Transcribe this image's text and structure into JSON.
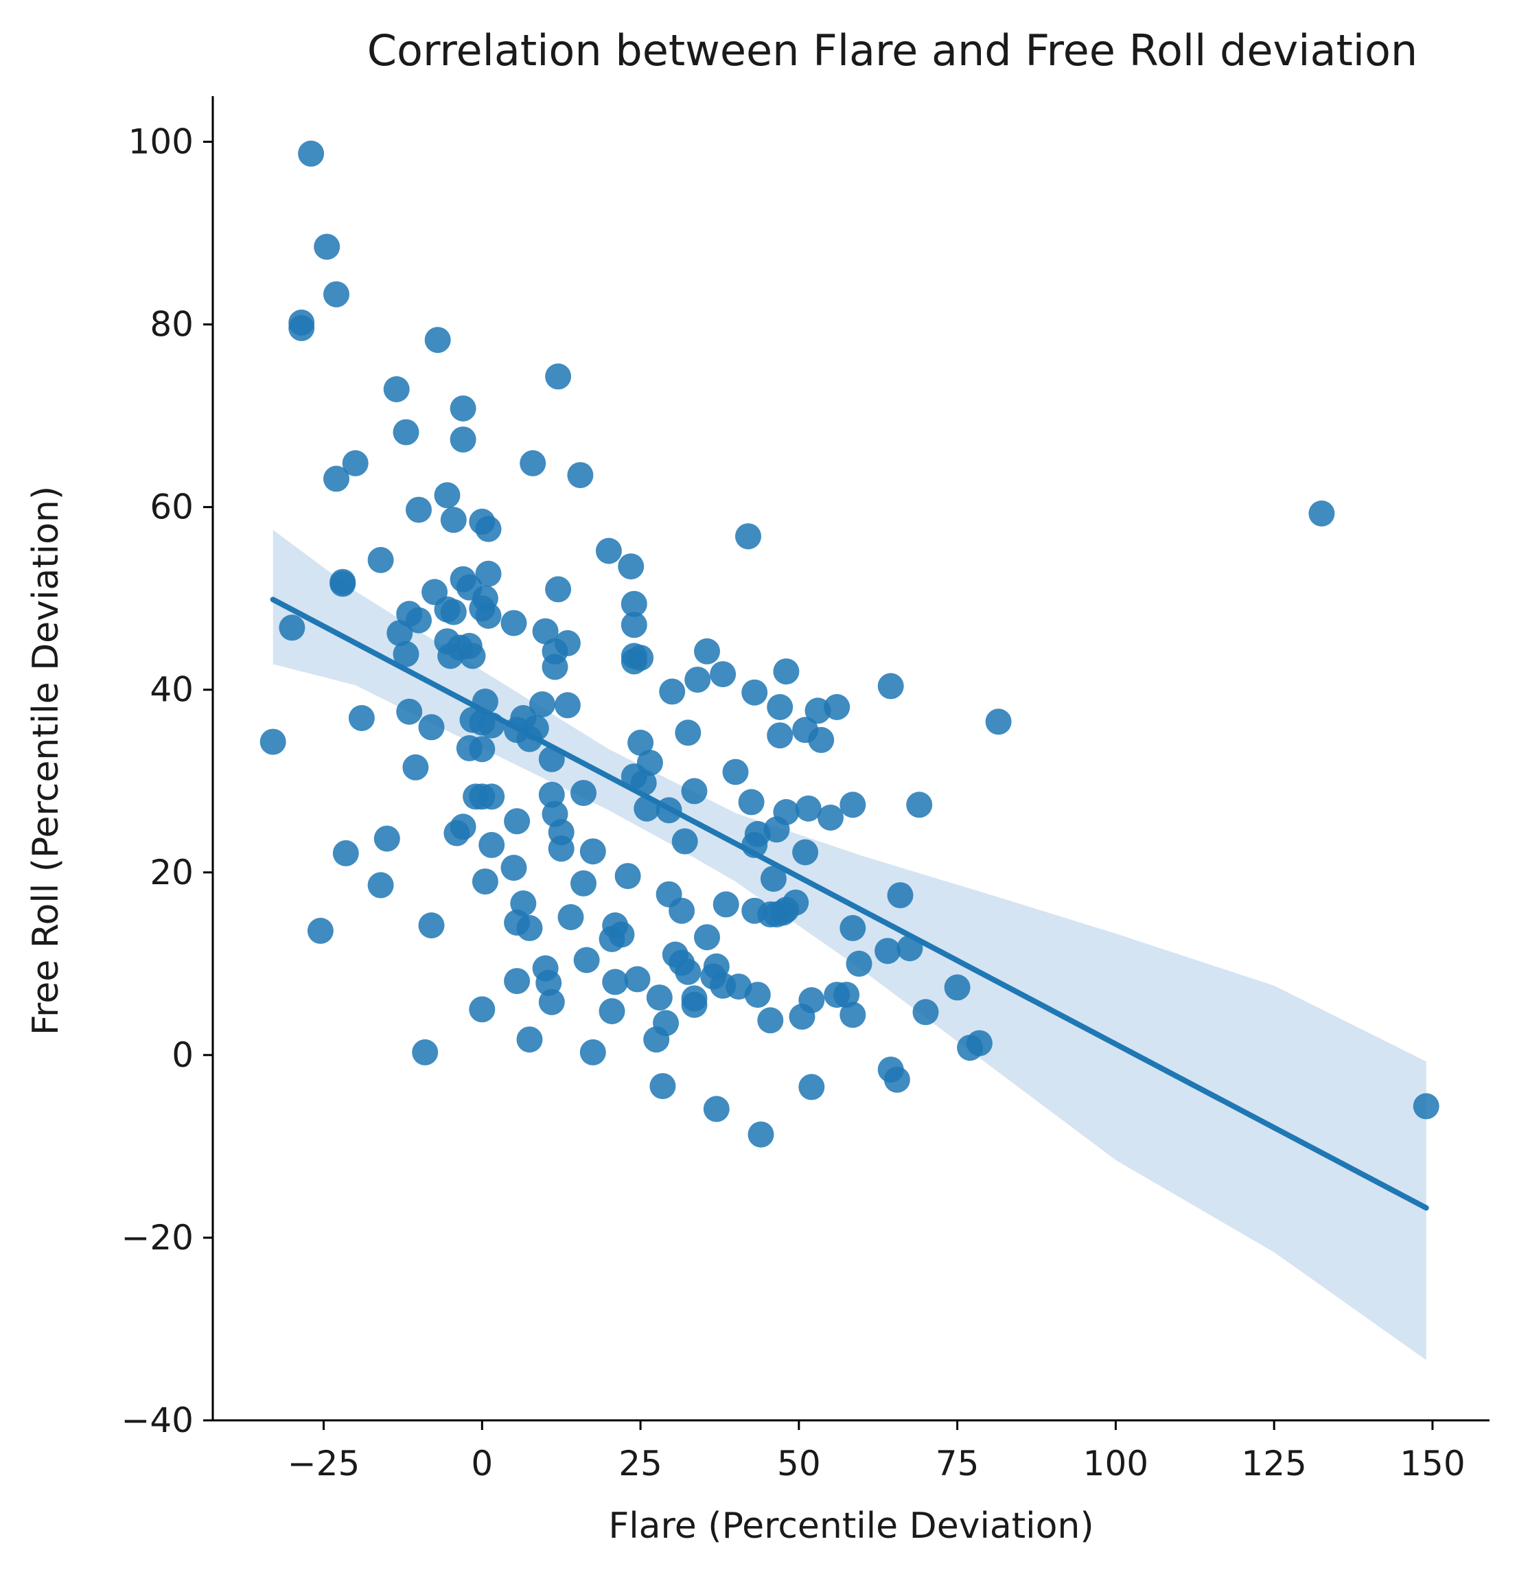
{
  "chart_data": {
    "type": "scatter",
    "title": "Correlation between Flare and Free Roll deviation",
    "xlabel": "Flare (Percentile Deviation)",
    "ylabel": "Free Roll (Percentile Deviation)",
    "xlim": [
      -42.5,
      159
    ],
    "ylim": [
      -40,
      105
    ],
    "xticks": [
      -25,
      0,
      25,
      50,
      75,
      100,
      125,
      150
    ],
    "yticks": [
      -40,
      -20,
      0,
      20,
      40,
      60,
      80,
      100
    ],
    "xtick_labels": [
      "−25",
      "0",
      "25",
      "50",
      "75",
      "100",
      "125",
      "150"
    ],
    "ytick_labels": [
      "−40",
      "−20",
      "0",
      "20",
      "40",
      "60",
      "80",
      "100"
    ],
    "grid": false,
    "colors": {
      "points": "#1f77b4",
      "regression_line": "#1f77b4",
      "confidence_band": "#d5e4f2",
      "axes": "#000000"
    },
    "points": [
      {
        "x": -27,
        "y": 98.7
      },
      {
        "x": -24.5,
        "y": 88.5
      },
      {
        "x": -23,
        "y": 83.3
      },
      {
        "x": -28.5,
        "y": 80.2
      },
      {
        "x": -28.5,
        "y": 79.6
      },
      {
        "x": -7,
        "y": 78.3
      },
      {
        "x": 12,
        "y": 74.3
      },
      {
        "x": -13.5,
        "y": 72.9
      },
      {
        "x": -3,
        "y": 70.8
      },
      {
        "x": -12,
        "y": 68.2
      },
      {
        "x": -3,
        "y": 67.4
      },
      {
        "x": -20,
        "y": 64.8
      },
      {
        "x": 8,
        "y": 64.8
      },
      {
        "x": -23,
        "y": 63.1
      },
      {
        "x": 15.5,
        "y": 63.5
      },
      {
        "x": -5.5,
        "y": 61.3
      },
      {
        "x": -10,
        "y": 59.7
      },
      {
        "x": -4.5,
        "y": 58.6
      },
      {
        "x": 0,
        "y": 58.4
      },
      {
        "x": 1,
        "y": 57.6
      },
      {
        "x": 42,
        "y": 56.8
      },
      {
        "x": 20,
        "y": 55.2
      },
      {
        "x": -16,
        "y": 54.2
      },
      {
        "x": 23.5,
        "y": 53.5
      },
      {
        "x": 1,
        "y": 52.7
      },
      {
        "x": -3,
        "y": 52.1
      },
      {
        "x": -22,
        "y": 51.8
      },
      {
        "x": -22,
        "y": 51.6
      },
      {
        "x": -2,
        "y": 51.2
      },
      {
        "x": 12,
        "y": 51
      },
      {
        "x": -7.5,
        "y": 50.7
      },
      {
        "x": 0.5,
        "y": 50
      },
      {
        "x": 24,
        "y": 49.4
      },
      {
        "x": 0,
        "y": 48.9
      },
      {
        "x": -5.5,
        "y": 48.8
      },
      {
        "x": -4.5,
        "y": 48.5
      },
      {
        "x": -11.5,
        "y": 48.3
      },
      {
        "x": 1,
        "y": 48.1
      },
      {
        "x": -10,
        "y": 47.6
      },
      {
        "x": 5,
        "y": 47.3
      },
      {
        "x": 24,
        "y": 47.1
      },
      {
        "x": -30,
        "y": 46.8
      },
      {
        "x": 10,
        "y": 46.4
      },
      {
        "x": -13,
        "y": 46.2
      },
      {
        "x": -5.5,
        "y": 45.3
      },
      {
        "x": 13.5,
        "y": 45.1
      },
      {
        "x": -2,
        "y": 44.8
      },
      {
        "x": -3.5,
        "y": 44.6
      },
      {
        "x": 11.5,
        "y": 44.2
      },
      {
        "x": 35.5,
        "y": 44.2
      },
      {
        "x": -12,
        "y": 43.9
      },
      {
        "x": -1.5,
        "y": 43.7
      },
      {
        "x": -5,
        "y": 43.7
      },
      {
        "x": 24,
        "y": 43.7
      },
      {
        "x": 25,
        "y": 43.5
      },
      {
        "x": 24,
        "y": 43.1
      },
      {
        "x": 11.5,
        "y": 42.5
      },
      {
        "x": 48,
        "y": 42
      },
      {
        "x": 38,
        "y": 41.7
      },
      {
        "x": 34,
        "y": 41.1
      },
      {
        "x": 64.5,
        "y": 40.4
      },
      {
        "x": 30,
        "y": 39.8
      },
      {
        "x": 43,
        "y": 39.7
      },
      {
        "x": 0.5,
        "y": 38.7
      },
      {
        "x": 9.5,
        "y": 38.4
      },
      {
        "x": 13.5,
        "y": 38.3
      },
      {
        "x": 47,
        "y": 38.1
      },
      {
        "x": 56,
        "y": 38.1
      },
      {
        "x": -11.5,
        "y": 37.6
      },
      {
        "x": 53,
        "y": 37.7
      },
      {
        "x": -19,
        "y": 36.9
      },
      {
        "x": 6.5,
        "y": 36.9
      },
      {
        "x": -1.5,
        "y": 36.7
      },
      {
        "x": 81.5,
        "y": 36.5
      },
      {
        "x": 0,
        "y": 36.4
      },
      {
        "x": 1.5,
        "y": 36.1
      },
      {
        "x": -8,
        "y": 35.9
      },
      {
        "x": 8.5,
        "y": 35.8
      },
      {
        "x": 5.5,
        "y": 35.6
      },
      {
        "x": 51,
        "y": 35.6
      },
      {
        "x": 32.5,
        "y": 35.3
      },
      {
        "x": 47,
        "y": 35
      },
      {
        "x": 7.5,
        "y": 34.6
      },
      {
        "x": 53.5,
        "y": 34.5
      },
      {
        "x": -33,
        "y": 34.3
      },
      {
        "x": 25,
        "y": 34.2
      },
      {
        "x": -2,
        "y": 33.6
      },
      {
        "x": 0,
        "y": 33.5
      },
      {
        "x": 11,
        "y": 32.4
      },
      {
        "x": 26.5,
        "y": 32
      },
      {
        "x": -10.5,
        "y": 31.5
      },
      {
        "x": 40,
        "y": 31
      },
      {
        "x": 24,
        "y": 30.5
      },
      {
        "x": 25.5,
        "y": 29.8
      },
      {
        "x": 33.5,
        "y": 28.9
      },
      {
        "x": 16,
        "y": 28.7
      },
      {
        "x": 11,
        "y": 28.5
      },
      {
        "x": -1,
        "y": 28.3
      },
      {
        "x": 0,
        "y": 28.3
      },
      {
        "x": 1.5,
        "y": 28.3
      },
      {
        "x": 42.5,
        "y": 27.7
      },
      {
        "x": 58.5,
        "y": 27.4
      },
      {
        "x": 69,
        "y": 27.4
      },
      {
        "x": 26,
        "y": 27
      },
      {
        "x": 51.5,
        "y": 27
      },
      {
        "x": 29.5,
        "y": 26.8
      },
      {
        "x": 48,
        "y": 26.6
      },
      {
        "x": 11.5,
        "y": 26.4
      },
      {
        "x": 55,
        "y": 26
      },
      {
        "x": 5.5,
        "y": 25.6
      },
      {
        "x": -3,
        "y": 25
      },
      {
        "x": 46.5,
        "y": 24.7
      },
      {
        "x": 12.5,
        "y": 24.4
      },
      {
        "x": -4,
        "y": 24.3
      },
      {
        "x": 43.5,
        "y": 24.2
      },
      {
        "x": -15,
        "y": 23.7
      },
      {
        "x": 32,
        "y": 23.4
      },
      {
        "x": 1.5,
        "y": 23
      },
      {
        "x": 43,
        "y": 23
      },
      {
        "x": 12.5,
        "y": 22.6
      },
      {
        "x": 17.5,
        "y": 22.3
      },
      {
        "x": 51,
        "y": 22.2
      },
      {
        "x": -21.5,
        "y": 22.1
      },
      {
        "x": 5,
        "y": 20.5
      },
      {
        "x": 23,
        "y": 19.6
      },
      {
        "x": 46,
        "y": 19.3
      },
      {
        "x": 0.5,
        "y": 19
      },
      {
        "x": 16,
        "y": 18.8
      },
      {
        "x": -16,
        "y": 18.6
      },
      {
        "x": 66,
        "y": 17.5
      },
      {
        "x": 29.5,
        "y": 17.6
      },
      {
        "x": 6.5,
        "y": 16.6
      },
      {
        "x": 38.5,
        "y": 16.5
      },
      {
        "x": 49.5,
        "y": 16.7
      },
      {
        "x": 31.5,
        "y": 15.8
      },
      {
        "x": 48,
        "y": 15.9
      },
      {
        "x": 43,
        "y": 15.8
      },
      {
        "x": 47.5,
        "y": 15.6
      },
      {
        "x": 45.5,
        "y": 15.4
      },
      {
        "x": 46.5,
        "y": 15.4
      },
      {
        "x": 14,
        "y": 15.1
      },
      {
        "x": 5.5,
        "y": 14.5
      },
      {
        "x": -8,
        "y": 14.2
      },
      {
        "x": 21,
        "y": 14.2
      },
      {
        "x": 58.5,
        "y": 13.9
      },
      {
        "x": 7.5,
        "y": 13.9
      },
      {
        "x": -25.5,
        "y": 13.6
      },
      {
        "x": 22,
        "y": 13.2
      },
      {
        "x": 35.5,
        "y": 12.9
      },
      {
        "x": 20.5,
        "y": 12.7
      },
      {
        "x": 67.5,
        "y": 11.7
      },
      {
        "x": 64,
        "y": 11.4
      },
      {
        "x": 30.5,
        "y": 11
      },
      {
        "x": 16.5,
        "y": 10.4
      },
      {
        "x": 59.5,
        "y": 10
      },
      {
        "x": 31.5,
        "y": 10.1
      },
      {
        "x": 37,
        "y": 9.7
      },
      {
        "x": 10,
        "y": 9.5
      },
      {
        "x": 32.5,
        "y": 9.1
      },
      {
        "x": 36.5,
        "y": 8.6
      },
      {
        "x": 24.5,
        "y": 8.3
      },
      {
        "x": 5.5,
        "y": 8.1
      },
      {
        "x": 21,
        "y": 8
      },
      {
        "x": 10.5,
        "y": 7.9
      },
      {
        "x": 38,
        "y": 7.6
      },
      {
        "x": 40.5,
        "y": 7.5
      },
      {
        "x": 75,
        "y": 7.4
      },
      {
        "x": 43.5,
        "y": 6.6
      },
      {
        "x": 56,
        "y": 6.6
      },
      {
        "x": 57.5,
        "y": 6.6
      },
      {
        "x": 28,
        "y": 6.3
      },
      {
        "x": 33.5,
        "y": 6.2
      },
      {
        "x": 52,
        "y": 6
      },
      {
        "x": 11,
        "y": 5.8
      },
      {
        "x": 33.5,
        "y": 5.5
      },
      {
        "x": 0,
        "y": 5
      },
      {
        "x": 20.5,
        "y": 4.8
      },
      {
        "x": 70,
        "y": 4.7
      },
      {
        "x": 58.5,
        "y": 4.4
      },
      {
        "x": 50.5,
        "y": 4.2
      },
      {
        "x": 45.5,
        "y": 3.8
      },
      {
        "x": 29,
        "y": 3.5
      },
      {
        "x": 27.5,
        "y": 1.7
      },
      {
        "x": 7.5,
        "y": 1.7
      },
      {
        "x": 78.5,
        "y": 1.3
      },
      {
        "x": 77,
        "y": 0.8
      },
      {
        "x": -9,
        "y": 0.3
      },
      {
        "x": 17.5,
        "y": 0.3
      },
      {
        "x": 64.5,
        "y": -1.6
      },
      {
        "x": 65.5,
        "y": -2.7
      },
      {
        "x": 28.5,
        "y": -3.4
      },
      {
        "x": 52,
        "y": -3.5
      },
      {
        "x": 37,
        "y": -5.9
      },
      {
        "x": 44,
        "y": -8.7
      },
      {
        "x": 132.5,
        "y": 59.3
      },
      {
        "x": 149,
        "y": -5.6
      }
    ],
    "regression": {
      "x_range": [
        -33,
        149
      ],
      "intercept": 37.8,
      "slope": -0.366,
      "ci_band": [
        {
          "x": -33,
          "upper": 57.5,
          "lower": 42.8
        },
        {
          "x": -20,
          "upper": 50.8,
          "lower": 40.5
        },
        {
          "x": 0,
          "upper": 42.1,
          "lower": 33.6
        },
        {
          "x": 20,
          "upper": 33.5,
          "lower": 26.8
        },
        {
          "x": 30,
          "upper": 30.0,
          "lower": 23.0
        },
        {
          "x": 40,
          "upper": 26.5,
          "lower": 19.0
        },
        {
          "x": 60,
          "upper": 21.8,
          "lower": 9.3
        },
        {
          "x": 80,
          "upper": 17.6,
          "lower": -1.1
        },
        {
          "x": 100,
          "upper": 13.3,
          "lower": -11.5
        },
        {
          "x": 125,
          "upper": 7.6,
          "lower": -21.6
        },
        {
          "x": 149,
          "upper": -0.7,
          "lower": -33.4
        }
      ]
    }
  }
}
